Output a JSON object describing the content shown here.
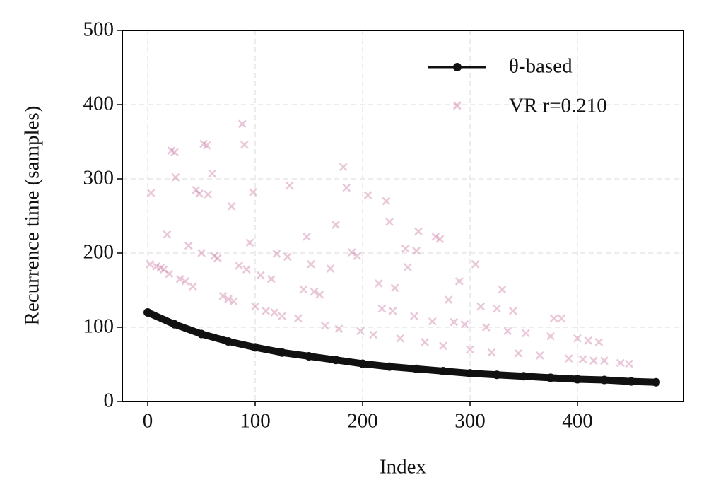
{
  "chart_data": {
    "type": "line",
    "xlabel": "Index",
    "ylabel": "Recurrence time (samples)",
    "xlim": [
      -23.7,
      498.7
    ],
    "ylim": [
      0,
      500
    ],
    "xticks": [
      0,
      100,
      200,
      300,
      400
    ],
    "yticks": [
      0,
      100,
      200,
      300,
      400,
      500
    ],
    "grid": true,
    "legend": "upper right",
    "series": [
      {
        "name": "θ-based",
        "type": "line",
        "color": "#111111",
        "x": [
          0,
          25,
          50,
          75,
          100,
          125,
          150,
          175,
          200,
          225,
          250,
          275,
          300,
          325,
          350,
          375,
          400,
          425,
          450,
          473
        ],
        "values": [
          120,
          104,
          91,
          81,
          73,
          66,
          61,
          56,
          51,
          47,
          44,
          41,
          38,
          36,
          34,
          32,
          30,
          29,
          27,
          26
        ]
      },
      {
        "name": "VR r=0.210",
        "type": "scatter",
        "color": "#c9729f",
        "x": [
          2,
          3,
          8,
          12,
          15,
          18,
          20,
          22,
          25,
          26,
          30,
          35,
          38,
          42,
          45,
          48,
          50,
          52,
          55,
          56,
          60,
          62,
          65,
          70,
          75,
          78,
          80,
          85,
          88,
          90,
          92,
          95,
          98,
          100,
          105,
          110,
          115,
          118,
          120,
          125,
          130,
          132,
          140,
          145,
          148,
          152,
          155,
          160,
          165,
          170,
          175,
          178,
          182,
          185,
          190,
          195,
          198,
          205,
          210,
          215,
          218,
          222,
          225,
          228,
          230,
          235,
          240,
          242,
          248,
          250,
          252,
          258,
          265,
          268,
          272,
          275,
          280,
          285,
          288,
          290,
          295,
          300,
          305,
          310,
          315,
          320,
          325,
          330,
          335,
          340,
          345,
          352,
          365,
          375,
          378,
          385,
          392,
          400,
          405,
          410,
          415,
          420,
          425,
          440,
          448
        ],
        "values": [
          185,
          281,
          182,
          180,
          178,
          225,
          172,
          338,
          336,
          302,
          165,
          162,
          210,
          155,
          285,
          280,
          200,
          347,
          345,
          279,
          307,
          196,
          193,
          142,
          138,
          263,
          135,
          183,
          374,
          346,
          178,
          214,
          282,
          128,
          170,
          122,
          165,
          120,
          199,
          115,
          195,
          291,
          112,
          151,
          222,
          185,
          148,
          144,
          102,
          179,
          238,
          98,
          316,
          288,
          201,
          196,
          95,
          278,
          90,
          159,
          125,
          270,
          242,
          122,
          153,
          85,
          206,
          181,
          115,
          203,
          229,
          80,
          108,
          222,
          219,
          75,
          137,
          107,
          399,
          162,
          104,
          70,
          185,
          128,
          100,
          66,
          125,
          151,
          95,
          122,
          65,
          92,
          62,
          88,
          112,
          112,
          58,
          85,
          57,
          82,
          55,
          80,
          55,
          52,
          51
        ]
      }
    ]
  }
}
